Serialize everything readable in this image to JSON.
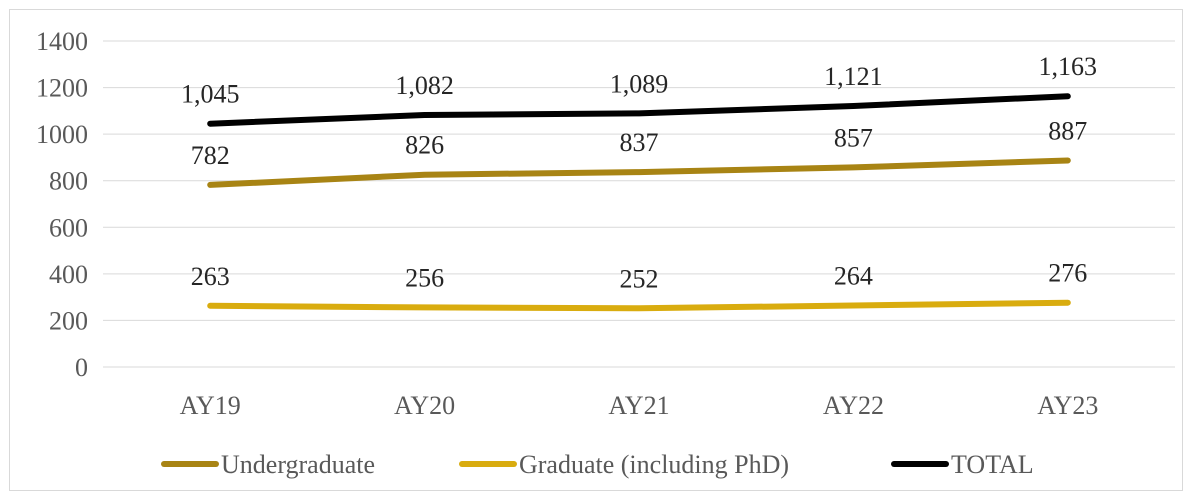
{
  "chart_data": {
    "type": "line",
    "title": "",
    "xlabel": "",
    "ylabel": "",
    "categories": [
      "AY19",
      "AY20",
      "AY21",
      "AY22",
      "AY23"
    ],
    "ylim": [
      0,
      1400
    ],
    "yticks": [
      0,
      200,
      400,
      600,
      800,
      1000,
      1200,
      1400
    ],
    "grid": true,
    "legend_position": "bottom",
    "series": [
      {
        "name": "Undergraduate",
        "color": "#a88414",
        "values": [
          782,
          826,
          837,
          857,
          887
        ],
        "labels": [
          "782",
          "826",
          "837",
          "857",
          "887"
        ]
      },
      {
        "name": "Graduate (including PhD)",
        "color": "#d9ac0f",
        "values": [
          263,
          256,
          252,
          264,
          276
        ],
        "labels": [
          "263",
          "256",
          "252",
          "264",
          "276"
        ]
      },
      {
        "name": "TOTAL",
        "color": "#000000",
        "values": [
          1045,
          1082,
          1089,
          1121,
          1163
        ],
        "labels": [
          "1,045",
          "1,082",
          "1,089",
          "1,121",
          "1,163"
        ]
      }
    ]
  }
}
